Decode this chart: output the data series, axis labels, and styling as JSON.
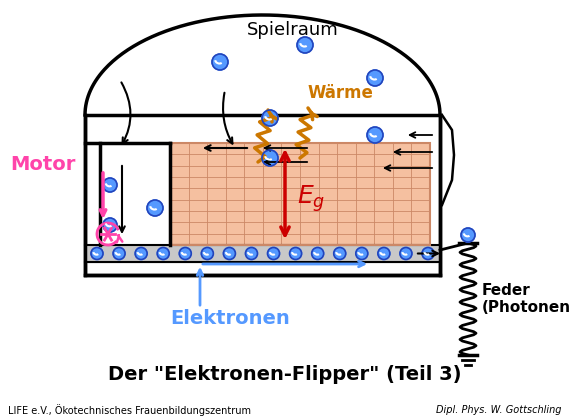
{
  "title": "Der \"Elektronen-Flipper\" (Teil 3)",
  "subtitle_left": "LIFE e.V., Ökotechnisches Frauenbildungszentrum",
  "subtitle_right": "Dipl. Phys. W. Gottschling",
  "label_spielraum": "Spielraum",
  "label_waerme": "Wärme",
  "label_motor": "Motor",
  "label_elektronen": "Elektronen",
  "label_feder": "Feder\n(Photonen)",
  "bg_color": "#ffffff",
  "grid_fill": "#f5c0a0",
  "grid_line": "#cc8866",
  "gray_band_color": "#c8c8c8",
  "electron_color": "#5599ff",
  "electron_edge": "#2244bb",
  "motor_color": "#ff44aa",
  "waerme_color": "#cc7700",
  "eg_arrow_color": "#cc0000",
  "elektronen_label_color": "#5599ff",
  "container_lw": 2.5,
  "inner_lw": 2.0
}
